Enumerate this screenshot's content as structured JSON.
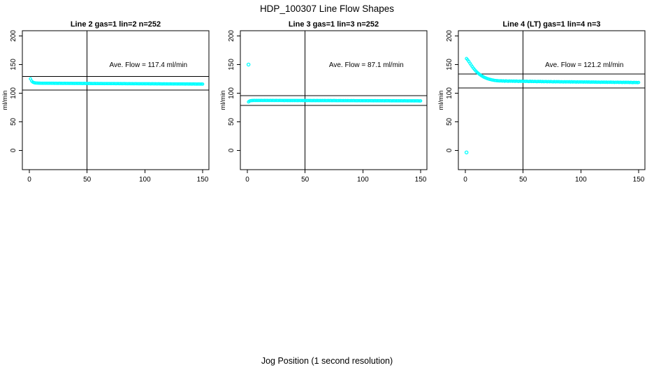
{
  "page": {
    "title": "HDP_100307  Line Flow Shapes",
    "xlabel": "Jog Position (1 second resolution)",
    "background": "#ffffff",
    "text_color": "#000000"
  },
  "chart_data": [
    {
      "type": "scatter",
      "title": "Line 2 gas=1 lin=2 n=252",
      "ylabel": "ml/min",
      "annotation": "Ave. Flow =  117.4  ml/min",
      "annotation_xy": [
        103,
        150
      ],
      "ave_flow": 117.4,
      "ref_lines": [
        129.1,
        105.7
      ],
      "vline_x": 50,
      "xlim": [
        -6.05,
        155.45
      ],
      "ylim": [
        -33.6,
        209.1
      ],
      "x_ticks": [
        0,
        50,
        100,
        150
      ],
      "y_ticks": [
        0,
        50,
        100,
        150,
        200
      ],
      "marker_color": "#00FFFF",
      "grid": false,
      "series": {
        "name": "flow",
        "x0": 1,
        "dx": 1,
        "y": [
          125.0,
          121.2,
          119.3,
          118.4,
          117.9,
          117.7,
          117.6,
          117.5,
          117.5,
          117.4,
          117.4,
          117.3,
          117.4,
          117.3,
          117.4,
          117.3,
          117.3,
          117.4,
          117.3,
          117.3,
          117.3,
          117.2,
          117.3,
          117.2,
          117.2,
          117.3,
          117.2,
          117.2,
          117.1,
          117.2,
          117.2,
          117.1,
          117.2,
          117.1,
          117.1,
          117.2,
          117.1,
          117.1,
          117.0,
          117.1,
          117.1,
          117.0,
          117.1,
          117.0,
          117.0,
          116.9,
          117.0,
          117.0,
          116.9,
          117.0,
          116.9,
          117.0,
          116.9,
          116.9,
          116.8,
          116.9,
          116.9,
          116.8,
          116.9,
          116.8,
          116.8,
          116.9,
          116.8,
          116.8,
          116.7,
          116.8,
          116.8,
          116.7,
          116.8,
          116.7,
          116.7,
          116.8,
          116.7,
          116.7,
          116.6,
          116.7,
          116.7,
          116.6,
          116.7,
          116.6,
          116.6,
          116.7,
          116.6,
          116.6,
          116.5,
          116.6,
          116.6,
          116.5,
          116.6,
          116.5,
          116.5,
          116.6,
          116.5,
          116.5,
          116.4,
          116.5,
          116.5,
          116.4,
          116.5,
          116.4,
          116.4,
          116.5,
          116.4,
          116.4,
          116.3,
          116.4,
          116.4,
          116.3,
          116.4,
          116.3,
          116.3,
          116.4,
          116.3,
          116.3,
          116.2,
          116.3,
          116.3,
          116.2,
          116.3,
          116.2,
          116.2,
          116.3,
          116.2,
          116.2,
          116.1,
          116.2,
          116.2,
          116.1,
          116.2,
          116.1,
          116.1,
          116.2,
          116.1,
          116.1,
          116.0,
          116.1,
          116.1,
          116.0,
          116.1,
          116.0,
          116.0,
          116.1,
          116.0,
          116.0,
          115.9,
          116.0,
          116.0,
          115.9,
          116.0,
          115.9
        ]
      },
      "outliers": []
    },
    {
      "type": "scatter",
      "title": "Line 3 gas=1 lin=3 n=252",
      "ylabel": "ml/min",
      "annotation": "Ave. Flow =  87.1  ml/min",
      "annotation_xy": [
        103,
        150
      ],
      "ave_flow": 87.1,
      "ref_lines": [
        95.8,
        78.4
      ],
      "vline_x": 50,
      "xlim": [
        -6.05,
        155.45
      ],
      "ylim": [
        -33.6,
        209.1
      ],
      "x_ticks": [
        0,
        50,
        100,
        150
      ],
      "y_ticks": [
        0,
        50,
        100,
        150,
        200
      ],
      "marker_color": "#00FFFF",
      "grid": false,
      "series": {
        "name": "flow",
        "x0": 1,
        "dx": 1,
        "y": [
          84.8,
          86.3,
          86.9,
          87.1,
          87.2,
          87.3,
          87.2,
          87.3,
          87.2,
          87.3,
          87.2,
          87.3,
          87.2,
          87.2,
          87.3,
          87.2,
          87.3,
          87.2,
          87.2,
          87.3,
          87.2,
          87.3,
          87.2,
          87.2,
          87.3,
          87.2,
          87.2,
          87.3,
          87.2,
          87.2,
          87.2,
          87.1,
          87.2,
          87.2,
          87.1,
          87.2,
          87.1,
          87.2,
          87.1,
          87.2,
          87.1,
          87.2,
          87.1,
          87.1,
          87.2,
          87.1,
          87.2,
          87.1,
          87.1,
          87.2,
          87.1,
          87.1,
          87.2,
          87.1,
          87.1,
          87.0,
          87.1,
          87.1,
          87.0,
          87.1,
          87.1,
          87.0,
          87.1,
          87.0,
          87.1,
          87.0,
          87.1,
          87.0,
          87.0,
          87.1,
          87.0,
          87.1,
          87.0,
          87.0,
          87.1,
          87.0,
          87.0,
          86.9,
          87.0,
          87.0,
          87.0,
          86.9,
          87.0,
          86.9,
          87.0,
          86.9,
          87.0,
          86.9,
          86.9,
          87.0,
          86.9,
          87.0,
          86.9,
          86.9,
          86.8,
          86.9,
          86.9,
          86.8,
          86.9,
          86.8,
          86.9,
          86.8,
          86.9,
          86.8,
          86.8,
          86.9,
          86.8,
          86.8,
          86.7,
          86.8,
          86.8,
          86.7,
          86.8,
          86.7,
          86.8,
          86.7,
          86.8,
          86.7,
          86.7,
          86.8,
          86.7,
          86.8,
          86.7,
          86.7,
          86.6,
          86.7,
          86.7,
          86.6,
          86.7,
          86.6,
          86.7,
          86.6,
          86.7,
          86.6,
          86.6,
          86.7,
          86.6,
          86.6,
          86.5,
          86.6,
          86.6,
          86.5,
          86.6,
          86.5,
          86.5,
          86.6,
          86.5,
          86.5,
          86.4,
          86.5
        ]
      },
      "outliers": [
        [
          1,
          150.0
        ]
      ]
    },
    {
      "type": "scatter",
      "title": "Line 4 (LT) gas=1 lin=4 n=3",
      "ylabel": "ml/min",
      "annotation": "Ave. Flow =  121.2  ml/min",
      "annotation_xy": [
        103,
        150
      ],
      "ave_flow": 121.2,
      "ref_lines": [
        133.3,
        109.1
      ],
      "vline_x": 50,
      "xlim": [
        -6.05,
        155.45
      ],
      "ylim": [
        -33.6,
        209.1
      ],
      "x_ticks": [
        0,
        50,
        100,
        150
      ],
      "y_ticks": [
        0,
        50,
        100,
        150,
        200
      ],
      "marker_color": "#00FFFF",
      "grid": false,
      "series": {
        "name": "flow",
        "x0": 1,
        "dx": 1,
        "y": [
          160.5,
          158.2,
          155.4,
          152.3,
          149.2,
          146.3,
          143.6,
          141.1,
          138.8,
          136.8,
          135.0,
          133.3,
          131.8,
          130.4,
          129.2,
          128.1,
          127.1,
          126.3,
          125.5,
          124.8,
          124.2,
          123.7,
          123.2,
          122.8,
          122.4,
          122.1,
          121.9,
          121.7,
          121.5,
          121.4,
          121.6,
          121.1,
          121.5,
          120.9,
          121.4,
          121.2,
          120.8,
          121.3,
          121.0,
          121.2,
          120.8,
          121.2,
          120.7,
          121.1,
          120.9,
          120.5,
          121.0,
          120.7,
          121.0,
          120.6,
          120.9,
          120.5,
          120.8,
          120.6,
          120.3,
          120.8,
          120.4,
          120.7,
          120.3,
          120.6,
          120.4,
          120.1,
          120.6,
          120.2,
          120.5,
          120.1,
          120.4,
          120.0,
          120.3,
          120.2,
          119.9,
          120.3,
          119.9,
          120.2,
          120.0,
          119.8,
          120.2,
          119.8,
          120.1,
          119.9,
          120.1,
          119.7,
          120.0,
          119.8,
          119.6,
          120.0,
          119.6,
          119.9,
          119.7,
          119.9,
          119.5,
          119.9,
          119.5,
          119.8,
          119.6,
          119.4,
          119.8,
          119.4,
          119.7,
          119.5,
          119.7,
          119.3,
          119.7,
          119.4,
          119.6,
          119.3,
          119.6,
          119.2,
          119.5,
          119.3,
          119.5,
          119.2,
          119.5,
          119.1,
          119.4,
          119.2,
          119.0,
          119.4,
          119.1,
          119.3,
          119.0,
          119.3,
          118.9,
          119.2,
          119.0,
          119.3,
          118.9,
          119.2,
          118.8,
          119.1,
          118.9,
          119.2,
          118.8,
          119.1,
          118.9,
          118.7,
          119.1,
          118.7,
          119.0,
          118.8,
          119.0,
          118.6,
          118.9,
          118.7,
          118.5,
          118.9,
          118.6,
          118.8,
          118.5,
          118.7
        ]
      },
      "outliers": [
        [
          1,
          -3.5
        ]
      ]
    }
  ]
}
